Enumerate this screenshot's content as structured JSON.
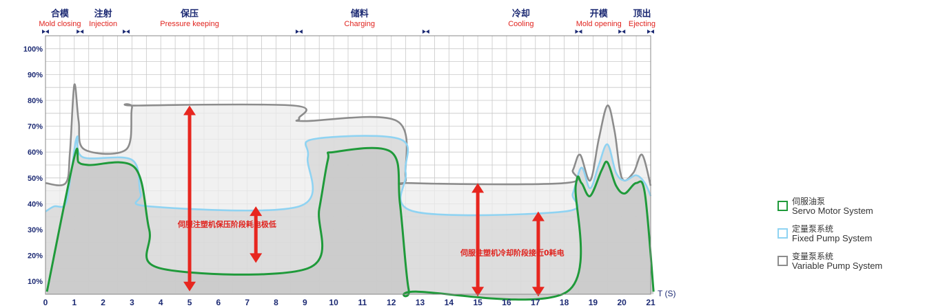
{
  "chart_data": {
    "type": "line",
    "x_unit": "T (S)",
    "xlim": [
      0,
      21
    ],
    "ylim": [
      5,
      105
    ],
    "x_ticks": [
      "0",
      "1",
      "2",
      "3",
      "4",
      "5",
      "6",
      "7",
      "8",
      "9",
      "10",
      "11",
      "12",
      "13",
      "14",
      "15",
      "16",
      "17",
      "18",
      "19",
      "20",
      "21"
    ],
    "y_ticks": [
      "10%",
      "20%",
      "30%",
      "40%",
      "50%",
      "60%",
      "70%",
      "80%",
      "90%",
      "100%"
    ],
    "y_tick_values": [
      10,
      20,
      30,
      40,
      50,
      60,
      70,
      80,
      90,
      100
    ],
    "phases": [
      {
        "cn": "合模",
        "en": "Mold closing",
        "x": 0.5
      },
      {
        "cn": "注射",
        "en": "Injection",
        "x": 2.0
      },
      {
        "cn": "保压",
        "en": "Pressure keeping",
        "x": 5.0
      },
      {
        "cn": "储料",
        "en": "Charging",
        "x": 10.9
      },
      {
        "cn": "冷却",
        "en": "Cooling",
        "x": 16.5
      },
      {
        "cn": "开模",
        "en": "Mold opening",
        "x": 19.2
      },
      {
        "cn": "顶出",
        "en": "Ejecting",
        "x": 20.7
      }
    ],
    "phase_boundaries": [
      0,
      1.2,
      2.8,
      8.8,
      13.2,
      18.5,
      20.0,
      21
    ],
    "grid": true,
    "legend_position": "right",
    "series": [
      {
        "key": "variable",
        "name_cn": "变量泵系统",
        "name_en": "Variable Pump System",
        "color": "#8c8c8c",
        "fill": "#ececec",
        "points": [
          [
            0,
            48
          ],
          [
            0.7,
            48
          ],
          [
            0.85,
            60
          ],
          [
            1.0,
            86
          ],
          [
            1.15,
            72
          ],
          [
            1.35,
            61
          ],
          [
            2.8,
            61
          ],
          [
            3.0,
            77
          ],
          [
            3.2,
            78
          ],
          [
            8.6,
            78
          ],
          [
            8.8,
            73
          ],
          [
            9.0,
            72
          ],
          [
            12.2,
            72
          ],
          [
            12.5,
            50
          ],
          [
            12.7,
            48
          ],
          [
            18.0,
            48
          ],
          [
            18.3,
            53
          ],
          [
            18.55,
            59
          ],
          [
            18.9,
            49
          ],
          [
            19.2,
            65
          ],
          [
            19.5,
            78
          ],
          [
            19.75,
            68
          ],
          [
            20.0,
            50
          ],
          [
            20.4,
            52
          ],
          [
            20.7,
            59
          ],
          [
            21.0,
            47
          ]
        ]
      },
      {
        "key": "fixed",
        "name_cn": "定量泵系统",
        "name_en": "Fixed Pump System",
        "color": "#8fd3f2",
        "fill": "#d5d5d5",
        "points": [
          [
            0,
            37
          ],
          [
            0.3,
            39
          ],
          [
            0.7,
            40
          ],
          [
            0.9,
            53
          ],
          [
            1.1,
            66
          ],
          [
            1.3,
            58
          ],
          [
            3.0,
            57
          ],
          [
            3.3,
            44
          ],
          [
            3.6,
            39
          ],
          [
            8.8,
            39
          ],
          [
            9.1,
            58
          ],
          [
            9.3,
            65
          ],
          [
            12.3,
            65
          ],
          [
            12.5,
            52
          ],
          [
            12.8,
            37
          ],
          [
            18.0,
            37
          ],
          [
            18.3,
            44
          ],
          [
            18.6,
            54
          ],
          [
            18.9,
            46
          ],
          [
            19.2,
            55
          ],
          [
            19.5,
            63
          ],
          [
            19.8,
            52
          ],
          [
            20.1,
            49
          ],
          [
            20.5,
            51
          ],
          [
            20.8,
            48
          ],
          [
            21.0,
            43
          ]
        ]
      },
      {
        "key": "servo",
        "name_cn": "伺服油泵",
        "name_en": "Servo Motor System",
        "color": "#1f9a3a",
        "fill": "#c6c6c6",
        "points": [
          [
            0.05,
            6
          ],
          [
            1.0,
            58
          ],
          [
            1.15,
            56
          ],
          [
            1.5,
            55
          ],
          [
            3.1,
            54
          ],
          [
            3.6,
            30
          ],
          [
            4.0,
            15
          ],
          [
            9.1,
            15
          ],
          [
            9.5,
            38
          ],
          [
            9.8,
            57
          ],
          [
            10.0,
            60
          ],
          [
            12.0,
            60
          ],
          [
            12.3,
            40
          ],
          [
            12.6,
            7
          ],
          [
            12.9,
            6
          ],
          [
            18.1,
            6
          ],
          [
            18.4,
            47
          ],
          [
            18.6,
            48
          ],
          [
            18.9,
            43
          ],
          [
            19.3,
            53
          ],
          [
            19.5,
            56
          ],
          [
            19.8,
            47
          ],
          [
            20.1,
            44
          ],
          [
            20.5,
            48
          ],
          [
            20.8,
            44
          ],
          [
            21.1,
            6
          ]
        ]
      }
    ],
    "annotations": [
      {
        "text": "伺服注塑机保压阶段耗电极低",
        "x": 6.3,
        "y": 31
      },
      {
        "text": "伺服注塑机冷却阶段接近0耗电",
        "x": 16.2,
        "y": 20
      }
    ],
    "arrows": [
      {
        "x": 5.0,
        "y1": 78,
        "y2": 4
      },
      {
        "x": 7.3,
        "y1": 39,
        "y2": 15
      },
      {
        "x": 15.0,
        "y1": 48,
        "y2": 2
      },
      {
        "x": 17.1,
        "y1": 37,
        "y2": 2
      }
    ]
  }
}
